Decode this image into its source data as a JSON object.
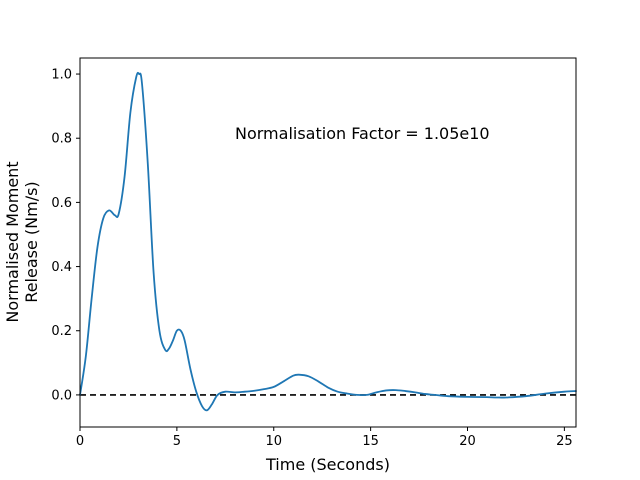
{
  "chart_data": {
    "type": "line",
    "title": "",
    "xlabel": "Time (Seconds)",
    "ylabel_lines": [
      "Normalised Moment",
      "Release (Nm/s)"
    ],
    "xlim": [
      0,
      25.6
    ],
    "ylim": [
      -0.1,
      1.05
    ],
    "xticks": [
      0,
      5,
      10,
      15,
      20,
      25
    ],
    "yticks": [
      0.0,
      0.2,
      0.4,
      0.6,
      0.8,
      1.0
    ],
    "xtick_labels": [
      "0",
      "5",
      "10",
      "15",
      "20",
      "25"
    ],
    "ytick_labels": [
      "0.0",
      "0.2",
      "0.4",
      "0.6",
      "0.8",
      "1.0"
    ],
    "grid": false,
    "annotation": "Normalisation Factor = 1.05e10",
    "reference_line": {
      "y": 0.0,
      "style": "dashed",
      "color": "#000000"
    },
    "series": [
      {
        "color": "#1f77b4",
        "x": [
          0,
          0.3,
          0.6,
          0.9,
          1.2,
          1.5,
          1.8,
          2.0,
          2.3,
          2.6,
          2.9,
          3.05,
          3.2,
          3.5,
          3.8,
          4.1,
          4.4,
          4.6,
          4.8,
          5.0,
          5.2,
          5.4,
          5.7,
          6.0,
          6.3,
          6.55,
          6.8,
          7.1,
          7.5,
          8.0,
          8.5,
          9.0,
          9.5,
          10.0,
          10.5,
          11.0,
          11.3,
          11.8,
          12.3,
          12.8,
          13.3,
          13.8,
          14.3,
          14.8,
          15.3,
          15.8,
          16.3,
          16.8,
          17.3,
          17.8,
          18.3,
          19.0,
          20.0,
          21.0,
          21.5,
          22.0,
          23.0,
          24.0,
          25.0,
          25.6
        ],
        "y": [
          0.0,
          0.12,
          0.3,
          0.46,
          0.55,
          0.575,
          0.56,
          0.565,
          0.68,
          0.88,
          0.99,
          1.0,
          0.97,
          0.72,
          0.38,
          0.2,
          0.14,
          0.145,
          0.17,
          0.2,
          0.2,
          0.17,
          0.08,
          0.01,
          -0.035,
          -0.048,
          -0.03,
          0.0,
          0.01,
          0.008,
          0.01,
          0.013,
          0.018,
          0.025,
          0.042,
          0.06,
          0.063,
          0.058,
          0.042,
          0.023,
          0.01,
          0.004,
          0.0,
          0.0,
          0.008,
          0.014,
          0.015,
          0.012,
          0.008,
          0.003,
          0.0,
          -0.004,
          -0.006,
          -0.007,
          -0.008,
          -0.008,
          -0.004,
          0.004,
          0.01,
          0.012
        ]
      }
    ]
  }
}
